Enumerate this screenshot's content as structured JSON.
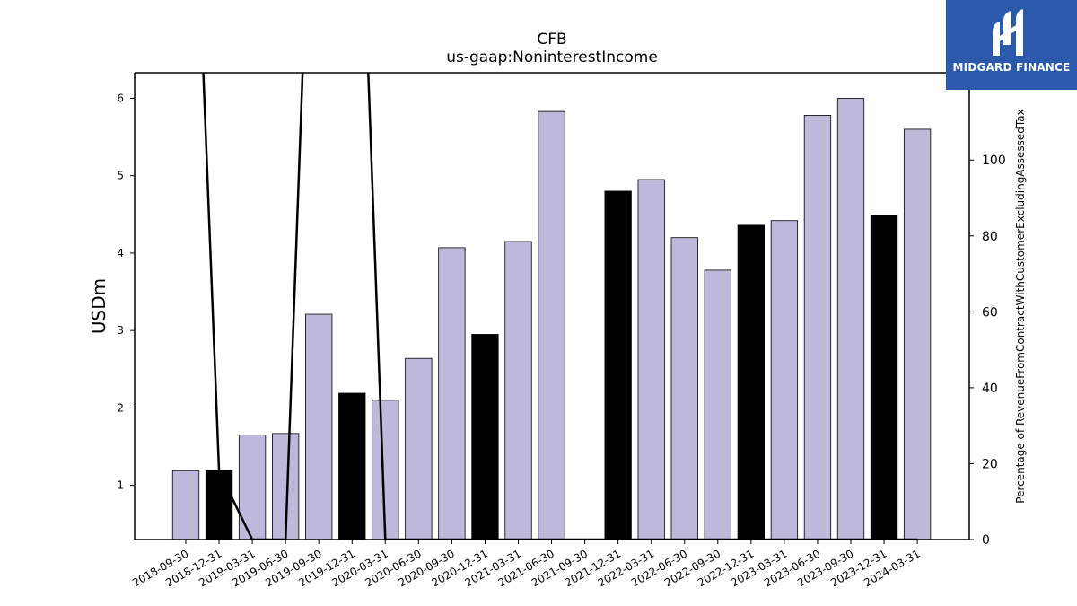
{
  "chart_data": {
    "type": "bar",
    "title": "CFB",
    "subtitle": "us-gaap:NoninterestIncome",
    "ylabel": "USDm",
    "y2label": "Percentage of RevenueFromContractWithCustomerExcludingAssessedTax",
    "ylim": [
      0.3,
      6.33
    ],
    "y2lim": [
      0,
      123
    ],
    "yticks": [
      1,
      2,
      3,
      4,
      5,
      6
    ],
    "y2ticks": [
      0,
      20,
      40,
      60,
      80,
      100
    ],
    "categories": [
      "2018-09-30",
      "2018-12-31",
      "2019-03-31",
      "2019-06-30",
      "2019-09-30",
      "2019-12-31",
      "2020-03-31",
      "2020-06-30",
      "2020-09-30",
      "2020-12-31",
      "2021-03-31",
      "2021-06-30",
      "2021-09-30",
      "2021-12-31",
      "2022-03-31",
      "2022-06-30",
      "2022-09-30",
      "2022-12-31",
      "2023-03-31",
      "2023-06-30",
      "2023-09-30",
      "2023-12-31",
      "2024-03-31"
    ],
    "series": [
      {
        "kind": "bar",
        "values": [
          1.19,
          1.19,
          1.65,
          1.67,
          3.21,
          2.19,
          2.1,
          2.64,
          4.07,
          2.95,
          4.15,
          5.83,
          null,
          4.8,
          4.95,
          4.2,
          3.78,
          4.36,
          4.42,
          5.78,
          6.0,
          4.49,
          5.6
        ],
        "highlight": [
          false,
          true,
          false,
          false,
          false,
          true,
          false,
          false,
          false,
          true,
          false,
          false,
          false,
          true,
          false,
          false,
          false,
          true,
          false,
          false,
          false,
          true,
          false
        ]
      },
      {
        "kind": "line",
        "axis": "right",
        "values": [
          240,
          18,
          0,
          0,
          240,
          240,
          0,
          0,
          0,
          0,
          0,
          0,
          0,
          0,
          0,
          0,
          0,
          0,
          0,
          0,
          0,
          0,
          0
        ]
      }
    ],
    "colors": {
      "bar": "#bdb9da",
      "highlight": "#000000",
      "line": "#000000"
    }
  },
  "logo": {
    "text": "MIDGARD FINANCE",
    "color": "#2b5aad"
  }
}
